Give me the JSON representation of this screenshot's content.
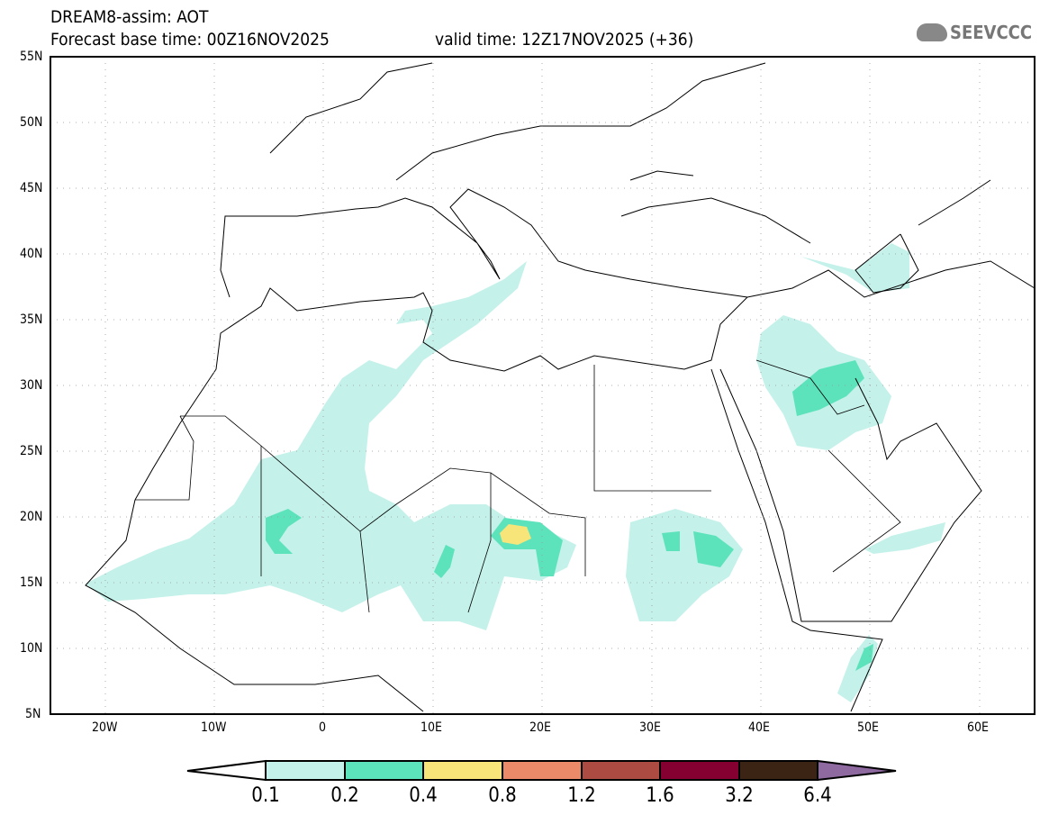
{
  "header": {
    "title": "DREAM8-assim: AOT",
    "base_time": "Forecast base time: 00Z16NOV2025",
    "valid_time": "valid time: 12Z17NOV2025 (+36)"
  },
  "logo": {
    "text": "SEEVCCC"
  },
  "axes": {
    "lat_labels": [
      "55N",
      "50N",
      "45N",
      "40N",
      "35N",
      "30N",
      "25N",
      "20N",
      "15N",
      "10N",
      "5N"
    ],
    "lon_labels": [
      "20W",
      "10W",
      "0",
      "10E",
      "20E",
      "30E",
      "40E",
      "50E",
      "60E"
    ]
  },
  "colorbar": {
    "labels": [
      "0.1",
      "0.2",
      "0.4",
      "0.8",
      "1.2",
      "1.6",
      "3.2",
      "6.4"
    ],
    "colors": [
      "#ffffff",
      "#c4f1ea",
      "#5de3bb",
      "#f7e57a",
      "#ea8a68",
      "#ab4b42",
      "#850030",
      "#3b2414",
      "#8e6aa0"
    ]
  }
}
